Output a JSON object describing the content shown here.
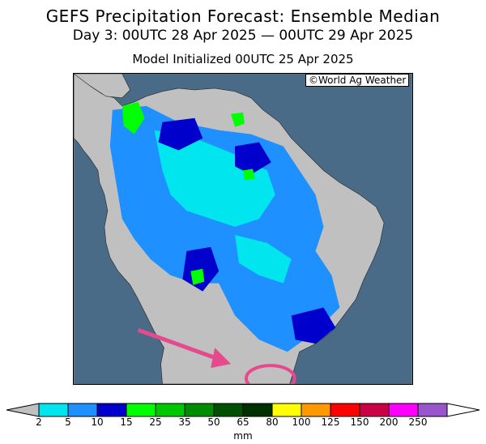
{
  "title": "GEFS Precipitation Forecast: Ensemble Median",
  "subtitle": "Day 3: 00UTC 28 Apr 2025 — 00UTC 29 Apr 2025",
  "init_line": "Model Initialized 00UTC 25 Apr 2025",
  "credit": "©World Ag Weather",
  "colorbar": {
    "unit": "mm",
    "tick_labels": [
      "2",
      "5",
      "10",
      "15",
      "25",
      "35",
      "50",
      "65",
      "80",
      "100",
      "125",
      "150",
      "200",
      "250"
    ],
    "colors": [
      "#00e5ee",
      "#1e90ff",
      "#0000cd",
      "#00ff00",
      "#00c800",
      "#008c00",
      "#005000",
      "#003000",
      "#ffff00",
      "#ff9900",
      "#ff0000",
      "#cc0044",
      "#ff00ff",
      "#9955cc"
    ],
    "under_color": "#c0c0c0",
    "over_color": "#ffffff"
  },
  "map": {
    "ocean_color": "#4a6b87",
    "land_color": "#c0c0c0",
    "annotation": {
      "arrow_color": "#e64a8c",
      "circle_color": "#e64a8c"
    }
  }
}
